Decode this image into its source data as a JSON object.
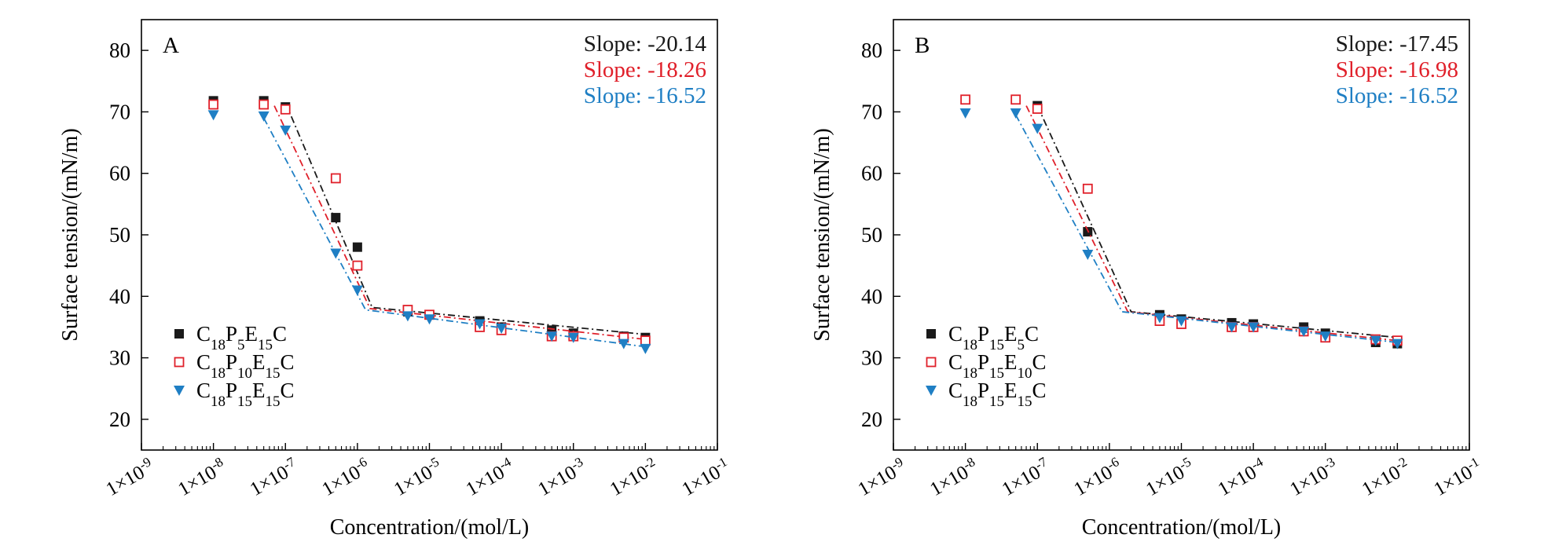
{
  "chart_data": [
    {
      "type": "scatter",
      "panel_label": "A",
      "xlabel": "Concentration/(mol/L)",
      "ylabel": "Surface tension/(mN/m)",
      "x_scale": "log",
      "xlim": [
        1e-09,
        0.1
      ],
      "ylim": [
        15,
        85
      ],
      "xticks": [
        "1×10-9",
        "1×10-8",
        "1×10-7",
        "1×10-6",
        "1×10-5",
        "1×10-4",
        "1×10-3",
        "1×10-2",
        "1×10-1"
      ],
      "yticks": [
        20,
        30,
        40,
        50,
        60,
        70,
        80
      ],
      "legend_position": "lower-left",
      "slopes": [
        "Slope: -20.14",
        "Slope: -18.26",
        "Slope: -16.52"
      ],
      "series": [
        {
          "name": "C18P5E15C",
          "name_parts": [
            [
              "C",
              ""
            ],
            [
              "18",
              "sub"
            ],
            [
              "P",
              ""
            ],
            [
              "5",
              "sub"
            ],
            [
              "E",
              ""
            ],
            [
              "15",
              "sub"
            ],
            [
              "C",
              ""
            ]
          ],
          "marker": "square-filled",
          "color": "#1a1a1a",
          "x": [
            1e-08,
            5e-08,
            1e-07,
            5e-07,
            1e-06,
            5e-06,
            1e-05,
            5e-05,
            0.0001,
            0.0005,
            0.001,
            0.005,
            0.01
          ],
          "y": [
            71.8,
            71.8,
            70.8,
            52.8,
            48.0,
            37.5,
            37.0,
            36.0,
            35.0,
            34.5,
            34.0,
            33.5,
            33.3
          ],
          "fit": [
            [
              1e-07,
              71.5
            ],
            [
              1.6e-06,
              38.2
            ],
            [
              0.01,
              33.8
            ]
          ]
        },
        {
          "name": "C18P10E15C",
          "name_parts": [
            [
              "C",
              ""
            ],
            [
              "18",
              "sub"
            ],
            [
              "P",
              ""
            ],
            [
              "10",
              "sub"
            ],
            [
              "E",
              ""
            ],
            [
              "15",
              "sub"
            ],
            [
              "C",
              ""
            ]
          ],
          "marker": "square-open",
          "color": "#e0202a",
          "x": [
            1e-08,
            5e-08,
            1e-07,
            5e-07,
            1e-06,
            5e-06,
            1e-05,
            5e-05,
            0.0001,
            0.0005,
            0.001,
            0.005,
            0.01
          ],
          "y": [
            71.2,
            71.2,
            70.4,
            59.2,
            45.0,
            37.8,
            37.0,
            35.0,
            34.5,
            33.5,
            33.5,
            33.3,
            32.8
          ],
          "fit": [
            [
              7e-08,
              71.0
            ],
            [
              1.5e-06,
              38.0
            ],
            [
              0.01,
              33.0
            ]
          ]
        },
        {
          "name": "C18P15E15C",
          "name_parts": [
            [
              "C",
              ""
            ],
            [
              "18",
              "sub"
            ],
            [
              "P",
              ""
            ],
            [
              "15",
              "sub"
            ],
            [
              "E",
              ""
            ],
            [
              "15",
              "sub"
            ],
            [
              "C",
              ""
            ]
          ],
          "marker": "triangle-down",
          "color": "#1f7fc4",
          "x": [
            1e-08,
            5e-08,
            1e-07,
            5e-07,
            1e-06,
            5e-06,
            1e-05,
            5e-05,
            0.0001,
            0.0005,
            0.001,
            0.005,
            0.01
          ],
          "y": [
            69.5,
            69.3,
            67.0,
            47.0,
            41.0,
            36.8,
            36.3,
            35.5,
            34.8,
            33.5,
            33.3,
            32.3,
            31.5
          ],
          "fit": [
            [
              5e-08,
              69.0
            ],
            [
              1.3e-06,
              37.8
            ],
            [
              0.01,
              31.8
            ]
          ]
        }
      ]
    },
    {
      "type": "scatter",
      "panel_label": "B",
      "xlabel": "Concentration/(mol/L)",
      "ylabel": "Surface tension/(mN/m)",
      "x_scale": "log",
      "xlim": [
        1e-09,
        0.1
      ],
      "ylim": [
        15,
        85
      ],
      "xticks": [
        "1×10-9",
        "1×10-8",
        "1×10-7",
        "1×10-6",
        "1×10-5",
        "1×10-4",
        "1×10-3",
        "1×10-2",
        "1×10-1"
      ],
      "yticks": [
        20,
        30,
        40,
        50,
        60,
        70,
        80
      ],
      "legend_position": "lower-left",
      "slopes": [
        "Slope: -17.45",
        "Slope: -16.98",
        "Slope: -16.52"
      ],
      "series": [
        {
          "name": "C18P15E5C",
          "name_parts": [
            [
              "C",
              ""
            ],
            [
              "18",
              "sub"
            ],
            [
              "P",
              ""
            ],
            [
              "15",
              "sub"
            ],
            [
              "E",
              ""
            ],
            [
              "5",
              "sub"
            ],
            [
              "C",
              ""
            ]
          ],
          "marker": "square-filled",
          "color": "#1a1a1a",
          "x": [
            1e-07,
            5e-07,
            5e-06,
            1e-05,
            5e-05,
            0.0001,
            0.0005,
            0.001,
            0.005,
            0.01
          ],
          "y": [
            71.0,
            50.5,
            37.0,
            36.3,
            35.7,
            35.5,
            35.0,
            34.0,
            32.5,
            32.3
          ],
          "fit": [
            [
              1e-07,
              71.0
            ],
            [
              2e-06,
              37.5
            ],
            [
              0.01,
              33.3
            ]
          ]
        },
        {
          "name": "C18P15E10C",
          "name_parts": [
            [
              "C",
              ""
            ],
            [
              "18",
              "sub"
            ],
            [
              "P",
              ""
            ],
            [
              "15",
              "sub"
            ],
            [
              "E",
              ""
            ],
            [
              "10",
              "sub"
            ],
            [
              "C",
              ""
            ]
          ],
          "marker": "square-open",
          "color": "#e0202a",
          "x": [
            1e-08,
            5e-08,
            1e-07,
            5e-07,
            5e-06,
            1e-05,
            5e-05,
            0.0001,
            0.0005,
            0.001,
            0.005,
            0.01
          ],
          "y": [
            72.0,
            72.0,
            70.5,
            57.5,
            36.0,
            35.5,
            35.0,
            35.0,
            34.3,
            33.3,
            33.0,
            32.8
          ],
          "fit": [
            [
              7e-08,
              71.0
            ],
            [
              1.8e-06,
              37.5
            ],
            [
              0.01,
              32.8
            ]
          ]
        },
        {
          "name": "C18P15E15C",
          "name_parts": [
            [
              "C",
              ""
            ],
            [
              "18",
              "sub"
            ],
            [
              "P",
              ""
            ],
            [
              "15",
              "sub"
            ],
            [
              "E",
              ""
            ],
            [
              "15",
              "sub"
            ],
            [
              "C",
              ""
            ]
          ],
          "marker": "triangle-down",
          "color": "#1f7fc4",
          "x": [
            1e-08,
            5e-08,
            1e-07,
            5e-07,
            5e-06,
            1e-05,
            5e-05,
            0.0001,
            0.0005,
            0.001,
            0.005,
            0.01
          ],
          "y": [
            69.8,
            69.8,
            67.3,
            46.8,
            36.5,
            36.0,
            35.0,
            35.0,
            34.3,
            33.5,
            32.8,
            32.3
          ],
          "fit": [
            [
              5e-08,
              69.5
            ],
            [
              1.5e-06,
              37.5
            ],
            [
              0.01,
              32.5
            ]
          ]
        }
      ]
    }
  ]
}
